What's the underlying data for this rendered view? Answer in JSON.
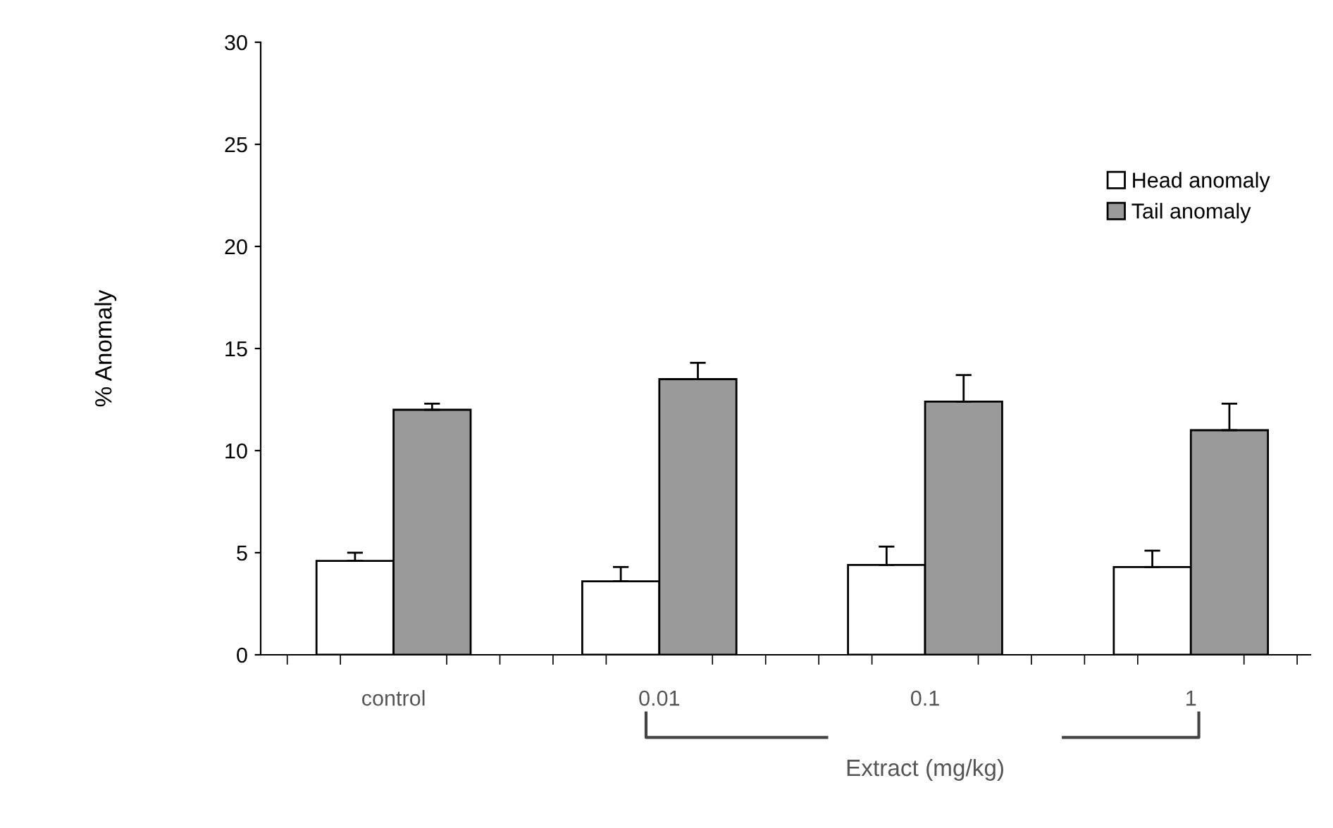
{
  "chart_data": {
    "type": "bar",
    "xlabel": "Extract (mg/kg)",
    "ylabel": "% Anomaly",
    "categories": [
      "control",
      "0.01",
      "0.1",
      "1"
    ],
    "series": [
      {
        "name": "Head anomaly",
        "color": "#ffffff",
        "values": [
          4.6,
          3.6,
          4.4,
          4.3
        ],
        "errors": [
          [
            4.6,
            5.0
          ],
          [
            3.6,
            4.3
          ],
          [
            4.4,
            5.3
          ],
          [
            4.3,
            5.1
          ]
        ]
      },
      {
        "name": "Tail anomaly",
        "color": "#9a9a9a",
        "values": [
          12.0,
          13.5,
          12.4,
          11.0
        ],
        "errors": [
          [
            12.0,
            12.3
          ],
          [
            13.5,
            14.3
          ],
          [
            12.4,
            13.7
          ],
          [
            11.0,
            12.3
          ]
        ]
      }
    ],
    "ylim": [
      0,
      30
    ],
    "yticks": [
      0,
      5,
      10,
      15,
      20,
      25,
      30
    ],
    "grid": false,
    "legend": "top right"
  }
}
